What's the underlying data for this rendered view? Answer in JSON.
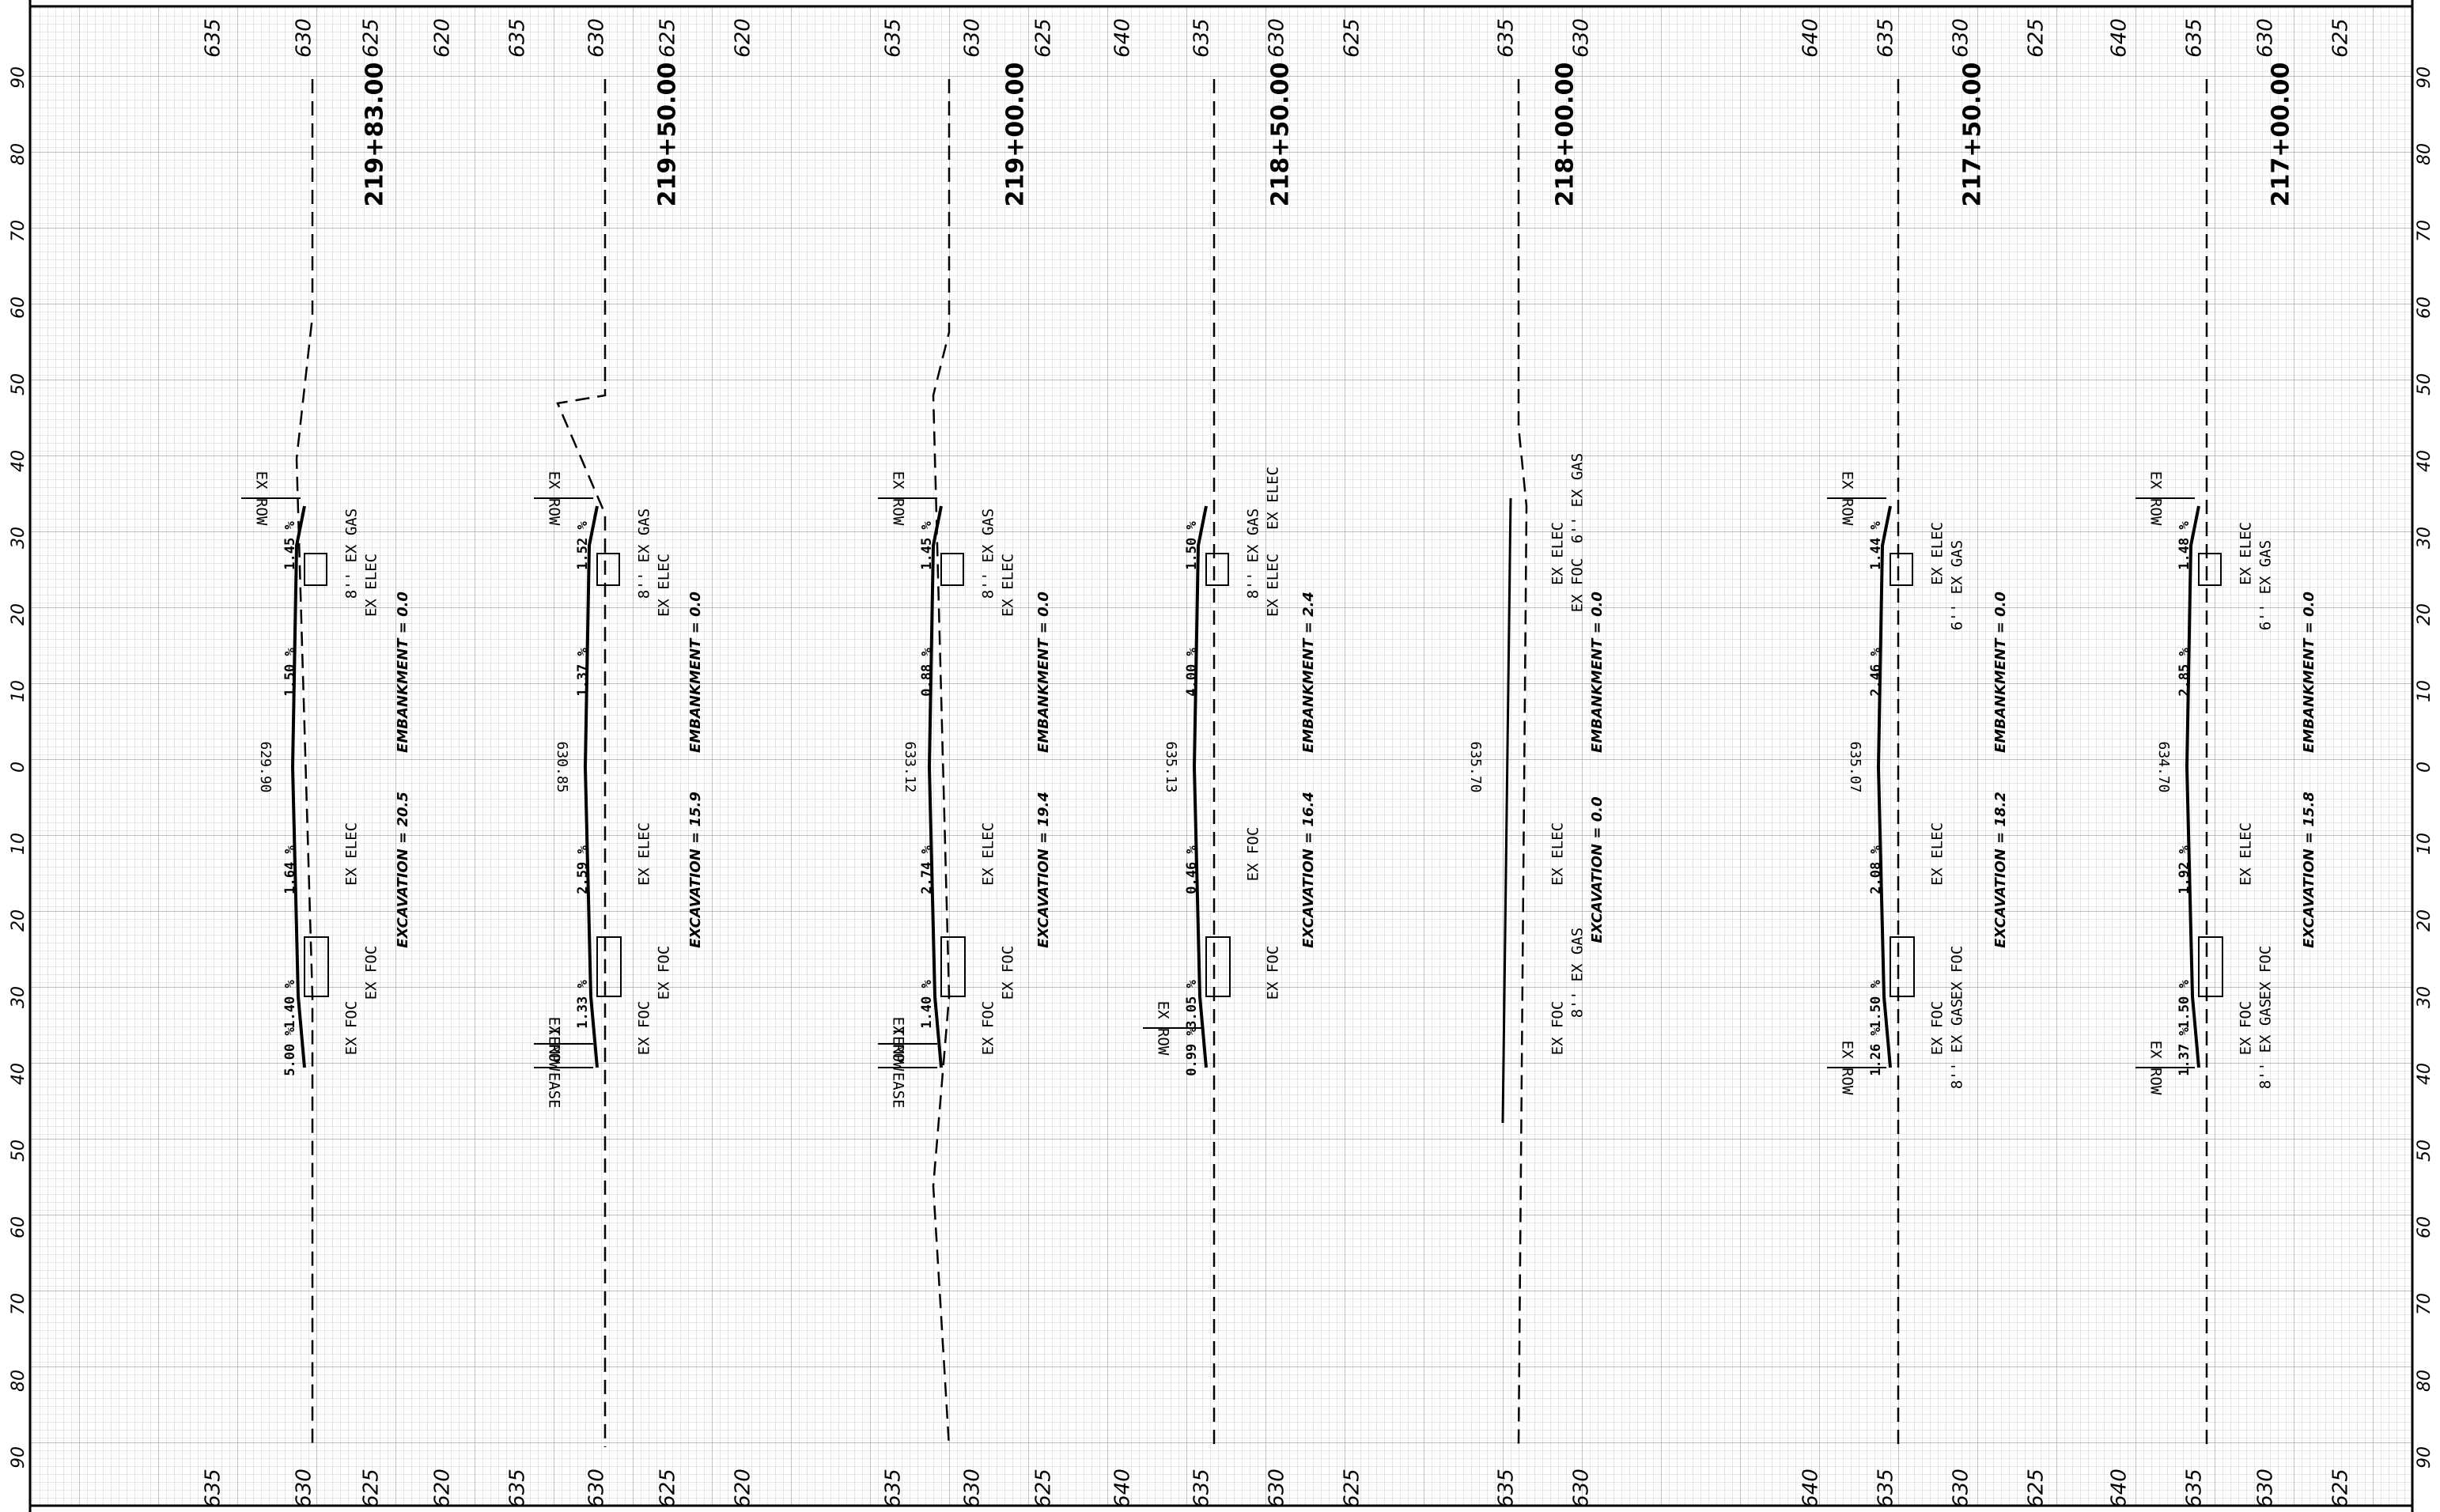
{
  "sheet": {
    "offset_ticks": [
      "90",
      "80",
      "70",
      "60",
      "50",
      "40",
      "30",
      "20",
      "10",
      "0",
      "10",
      "20",
      "30",
      "40",
      "50",
      "60",
      "70",
      "80",
      "90"
    ],
    "sections": [
      {
        "station": "219+83.00",
        "elev_ticks": [
          "635",
          "630",
          "625",
          "620"
        ],
        "centerline_elev": "629.90",
        "embankment": "EMBANKMENT = 0.0",
        "excavation": "EXCAVATION = 20.5",
        "slopes": [
          "1.45 %",
          "1.50 %",
          "1.64 %",
          "1.40 %",
          "5.00 %"
        ],
        "labels": [
          "EX ROW",
          "8'' EX GAS",
          "EX ELEC",
          "EX ELEC",
          "EX FOC",
          "EX FOC"
        ]
      },
      {
        "station": "219+50.00",
        "elev_ticks": [
          "635",
          "630",
          "625",
          "620"
        ],
        "centerline_elev": "630.85",
        "embankment": "EMBANKMENT = 0.0",
        "excavation": "EXCAVATION = 15.9",
        "slopes": [
          "1.52 %",
          "1.37 %",
          "2.59 %",
          "1.33 %"
        ],
        "labels": [
          "EX ROW",
          "8'' EX GAS",
          "EX ELEC",
          "EX ELEC",
          "EX FOC",
          "EX FOC",
          "EX ROW",
          "TEMP EASE"
        ]
      },
      {
        "station": "219+00.00",
        "elev_ticks": [
          "635",
          "630",
          "625"
        ],
        "centerline_elev": "633.12",
        "embankment": "EMBANKMENT = 0.0",
        "excavation": "EXCAVATION = 19.4",
        "slopes": [
          "1.45 %",
          "0.88 %",
          "2.74 %",
          "1.40 %"
        ],
        "labels": [
          "EX ROW",
          "8'' EX GAS",
          "EX ELEC",
          "EX ELEC",
          "EX FOC",
          "EX FOC",
          "EX ROW",
          "TEMP EASE"
        ]
      },
      {
        "station": "218+50.00",
        "elev_ticks": [
          "640",
          "635",
          "630",
          "625"
        ],
        "centerline_elev": "635.13",
        "embankment": "EMBANKMENT = 2.4",
        "excavation": "EXCAVATION = 16.4",
        "slopes": [
          "1.50 %",
          "4.00 %",
          "0.46 %",
          "3.05 %",
          "0.99 %"
        ],
        "labels": [
          "EX ELEC",
          "8'' EX GAS",
          "EX ELEC",
          "EX FOC",
          "EX FOC",
          "EX ROW"
        ]
      },
      {
        "station": "218+00.00",
        "elev_ticks": [
          "635",
          "630"
        ],
        "centerline_elev": "635.70",
        "embankment": "EMBANKMENT = 0.0",
        "excavation": "EXCAVATION = 0.0",
        "slopes": [],
        "labels": [
          "6'' EX GAS",
          "EX ELEC",
          "EX FOC",
          "EX ELEC",
          "8'' EX GAS",
          "EX FOC"
        ]
      },
      {
        "station": "217+50.00",
        "elev_ticks": [
          "640",
          "635",
          "630",
          "625"
        ],
        "centerline_elev": "635.07",
        "embankment": "EMBANKMENT = 0.0",
        "excavation": "EXCAVATION = 18.2",
        "slopes": [
          "1.44 %",
          "2.46 %",
          "2.08 %",
          "1.50 %",
          "1.26 %"
        ],
        "labels": [
          "EX ROW",
          "EX ELEC",
          "6'' EX GAS",
          "EX ELEC",
          "EX FOC",
          "EX FOC",
          "8'' EX GAS",
          "EX ROW"
        ]
      },
      {
        "station": "217+00.00",
        "elev_ticks": [
          "640",
          "635",
          "630",
          "625"
        ],
        "centerline_elev": "634.70",
        "embankment": "EMBANKMENT = 0.0",
        "excavation": "EXCAVATION = 15.8",
        "slopes": [
          "1.48 %",
          "2.85 %",
          "1.92 %",
          "1.50 %",
          "1.37 %"
        ],
        "labels": [
          "EX ROW",
          "EX ELEC",
          "6'' EX GAS",
          "EX ELEC",
          "EX FOC",
          "EX FOC",
          "8'' EX GAS",
          "EX ROW"
        ]
      }
    ]
  }
}
